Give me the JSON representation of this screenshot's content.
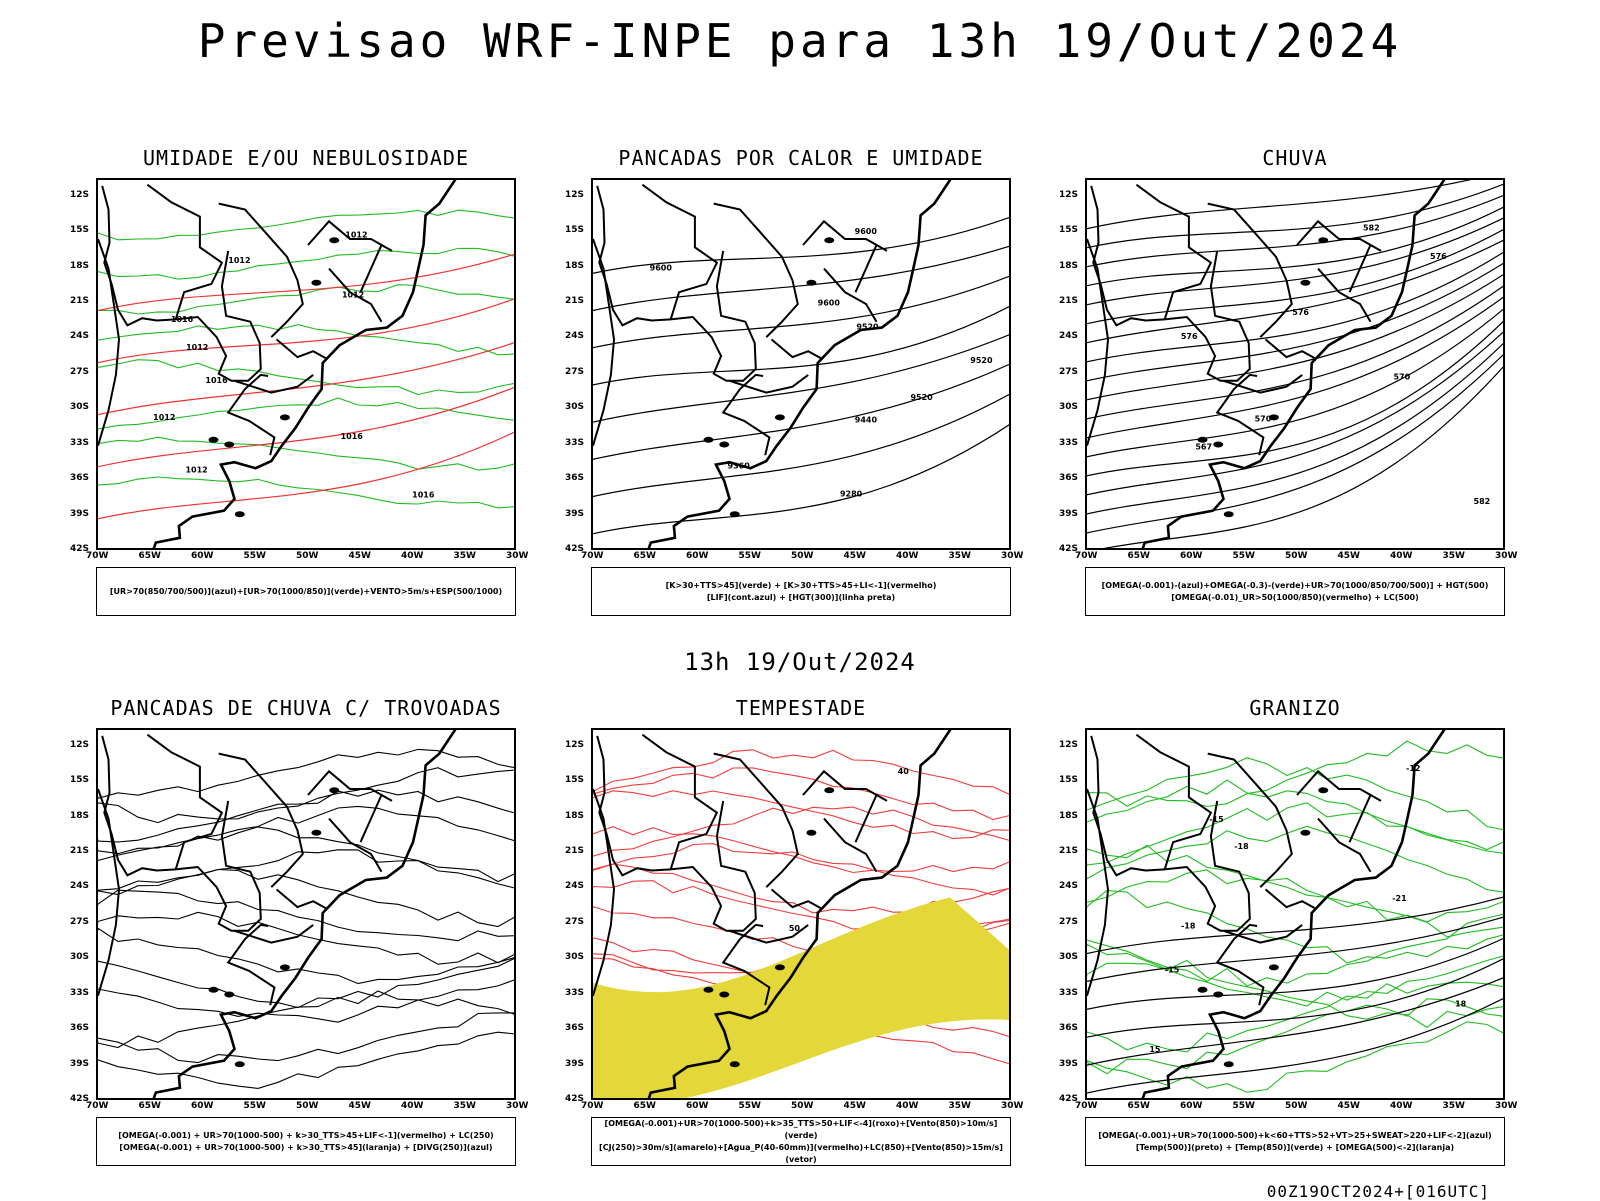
{
  "header": {
    "title": "Previsao WRF-INPE  para 13h 19/Out/2024"
  },
  "middle": {
    "title": "13h 19/Out/2024"
  },
  "footer": {
    "stamp": "00Z19OCT2024+[016UTC]"
  },
  "axes": {
    "lat": [
      "12S",
      "15S",
      "18S",
      "21S",
      "24S",
      "27S",
      "30S",
      "33S",
      "36S",
      "39S",
      "42S"
    ],
    "lon": [
      "70W",
      "65W",
      "60W",
      "55W",
      "50W",
      "45W",
      "40W",
      "35W",
      "30W"
    ]
  },
  "panels": [
    {
      "title": "UMIDADE E/OU NEBULOSIDADE",
      "legend": [
        "[UR>70(850/700/500)](azul)+[UR>70(1000/850)](verde)+VENTO>5m/s+ESP(500/1000)"
      ],
      "contours": [
        "1012",
        "1012",
        "1012",
        "1016",
        "1012",
        "1016",
        "1012",
        "1016",
        "1012",
        "1016"
      ],
      "colors": {
        "a": "#8f8ff0",
        "b": "#22bb22",
        "c": "#ee3333"
      }
    },
    {
      "title": "PANCADAS POR CALOR E UMIDADE",
      "legend": [
        "[K>30+TTS>45](verde) + [K>30+TTS>45+LI<-1](vermelho)",
        "[LIF](cont.azul) + [HGT(300)](linha preta)"
      ],
      "contours": [
        "9600",
        "9600",
        "9600",
        "9520",
        "9520",
        "9520",
        "9440",
        "9360",
        "9280"
      ],
      "colors": {
        "a": "#f03c3c",
        "b": "#2f5a55",
        "c": "#2a3cf0"
      }
    },
    {
      "title": "CHUVA",
      "legend": [
        "[OMEGA(-0.001)-(azul)+OMEGA(-0.3)-(verde)+UR>70(1000/850/700/500)] + HGT(500)",
        "[OMEGA(-0.01)_UR>50(1000/850)(vermelho) + LC(500)"
      ],
      "contours": [
        "582",
        "576",
        "576",
        "576",
        "570",
        "570",
        "567",
        "582"
      ],
      "colors": {
        "a": "#f03c3c",
        "b": "#2a3cf0",
        "c": "#22bb22"
      }
    },
    {
      "title": "PANCADAS DE CHUVA C/ TROVOADAS",
      "legend": [
        "[OMEGA(-0.001) + UR>70(1000-500) + k>30_TTS>45+LIF<-1](vermelho) + LC(250)",
        "[OMEGA(-0.001) + UR>70(1000-500) + k>30_TTS>45](laranja) + [DIVG(250)](azul)"
      ],
      "contours": [],
      "colors": {
        "a": "#f03c3c",
        "b": "#2a3cf0",
        "c": "#f08030"
      }
    },
    {
      "title": "TEMPESTADE",
      "legend": [
        "[OMEGA(-0.001)+UR>70(1000-500)+k>35_TTS>50+LIF<-4](roxo)+[Vento(850)>10m/s](verde)",
        "[CJ(250)>30m/s](amarelo)+[Agua_P(40-60mm)](vermelho)+LC(850)+[Vento(850)>15m/s](vetor)"
      ],
      "contours": [
        "40",
        "50"
      ],
      "colors": {
        "a": "#e3d73a",
        "b": "#18c418",
        "c": "#f03c3c"
      }
    },
    {
      "title": "GRANIZO",
      "legend": [
        "[OMEGA(-0.001)+UR>70(1000-500)+k<60+TTS>52+VT>25+SWEAT>220+LIF<-2](azul)",
        "[Temp(500)](preto) + [Temp(850)](verde) + [OMEGA(500)<-2](laranja)"
      ],
      "contours": [
        "-12",
        "-15",
        "-18",
        "-21",
        "-18",
        "-15",
        "18",
        "15"
      ],
      "colors": {
        "a": "#22bb22",
        "b": "#f08030",
        "c": "#000000"
      }
    }
  ]
}
